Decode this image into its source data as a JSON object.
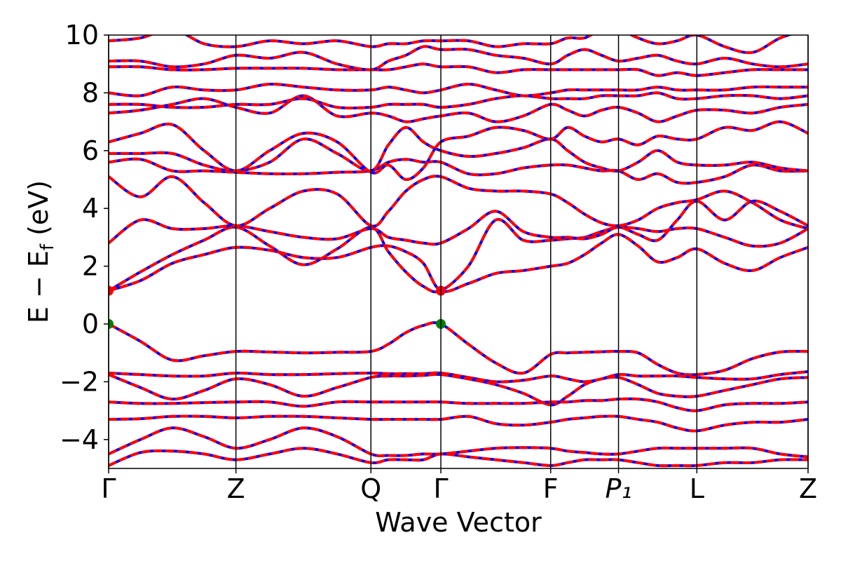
{
  "chart_data": {
    "type": "band-structure",
    "xlabel": "Wave Vector",
    "ylabel": [
      "E − E",
      "f",
      " (eV)"
    ],
    "xlim": [
      0,
      1
    ],
    "xticks": [
      {
        "value": 0,
        "label": "Γ"
      },
      {
        "value": 0.182,
        "label": "Z"
      },
      {
        "value": 0.375,
        "label": "Q"
      },
      {
        "value": 0.475,
        "label": "Γ"
      },
      {
        "value": 0.632,
        "label": "F"
      },
      {
        "value": 0.729,
        "label": "P₁"
      },
      {
        "value": 0.841,
        "label": "L"
      },
      {
        "value": 1.0,
        "label": "Z"
      }
    ],
    "ylim": [
      -5,
      10
    ],
    "yticks": [
      {
        "value": -4,
        "label": "−4"
      },
      {
        "value": -2,
        "label": "−2"
      },
      0,
      2,
      4,
      6,
      8,
      10
    ],
    "line_color": "#0000ff",
    "dash_color": "#ff0000",
    "x": [
      0,
      0.0455,
      0.091,
      0.1365,
      0.182,
      0.2303,
      0.2785,
      0.3268,
      0.375,
      0.4,
      0.425,
      0.45,
      0.475,
      0.5143,
      0.5535,
      0.5928,
      0.632,
      0.6563,
      0.6805,
      0.7048,
      0.729,
      0.757,
      0.785,
      0.813,
      0.841,
      0.8808,
      0.9205,
      0.9603,
      1.0
    ],
    "series": [
      {
        "values": [
          0,
          -0.6,
          -1.25,
          -1.1,
          -0.95,
          -0.97,
          -1.0,
          -0.98,
          -0.95,
          -0.7,
          -0.3,
          -0.05,
          0,
          -0.7,
          -1.35,
          -1.7,
          -1.05,
          -1.0,
          -0.98,
          -0.96,
          -0.95,
          -1.0,
          -1.4,
          -1.7,
          -1.75,
          -1.6,
          -1.2,
          -0.97,
          -0.95
        ]
      },
      {
        "values": [
          -1.7,
          -1.75,
          -1.8,
          -1.8,
          -1.7,
          -1.75,
          -1.75,
          -1.72,
          -1.7,
          -1.72,
          -1.72,
          -1.72,
          -1.7,
          -1.85,
          -2.0,
          -1.95,
          -1.8,
          -1.9,
          -2.0,
          -1.9,
          -1.75,
          -1.8,
          -1.8,
          -1.8,
          -1.85,
          -1.9,
          -1.9,
          -1.75,
          -1.65
        ]
      },
      {
        "values": [
          -1.75,
          -2.2,
          -2.6,
          -2.3,
          -1.9,
          -2.1,
          -2.5,
          -2.2,
          -1.85,
          -1.8,
          -1.8,
          -1.78,
          -1.75,
          -1.9,
          -2.1,
          -2.4,
          -2.8,
          -2.5,
          -2.1,
          -1.9,
          -1.85,
          -2.1,
          -2.4,
          -2.5,
          -2.5,
          -2.3,
          -2.1,
          -1.9,
          -1.85
        ]
      },
      {
        "values": [
          -2.7,
          -2.75,
          -2.75,
          -2.72,
          -2.7,
          -2.7,
          -2.85,
          -2.7,
          -2.7,
          -2.7,
          -2.7,
          -2.7,
          -2.7,
          -2.75,
          -2.75,
          -2.75,
          -2.7,
          -2.7,
          -2.65,
          -2.65,
          -2.6,
          -2.6,
          -2.7,
          -2.9,
          -3.0,
          -2.8,
          -2.75,
          -2.75,
          -2.7
        ]
      },
      {
        "values": [
          -3.3,
          -3.28,
          -3.2,
          -3.2,
          -3.25,
          -3.2,
          -3.2,
          -3.25,
          -3.3,
          -3.3,
          -3.3,
          -3.3,
          -3.3,
          -3.2,
          -3.45,
          -3.5,
          -3.4,
          -3.3,
          -3.25,
          -3.2,
          -3.2,
          -3.3,
          -3.4,
          -3.6,
          -3.7,
          -3.5,
          -3.4,
          -3.4,
          -3.3
        ]
      },
      {
        "values": [
          -4.5,
          -4.0,
          -3.6,
          -3.9,
          -4.3,
          -4.0,
          -3.6,
          -3.9,
          -4.5,
          -4.55,
          -4.55,
          -4.5,
          -4.5,
          -4.4,
          -4.3,
          -4.28,
          -4.3,
          -4.4,
          -4.45,
          -4.5,
          -4.5,
          -4.4,
          -4.3,
          -4.3,
          -4.3,
          -4.3,
          -4.3,
          -4.5,
          -4.6
        ]
      },
      {
        "values": [
          -4.9,
          -4.45,
          -4.4,
          -4.5,
          -4.7,
          -4.5,
          -4.3,
          -4.5,
          -4.8,
          -4.7,
          -4.7,
          -4.7,
          -4.5,
          -4.6,
          -4.7,
          -4.8,
          -4.9,
          -4.8,
          -4.7,
          -4.7,
          -4.7,
          -4.8,
          -4.9,
          -4.9,
          -4.9,
          -4.8,
          -4.8,
          -4.7,
          -4.7
        ]
      },
      {
        "values": [
          1.15,
          1.5,
          2.1,
          2.4,
          2.65,
          2.55,
          2.3,
          2.3,
          2.65,
          2.7,
          2.5,
          2.1,
          1.15,
          1.4,
          1.75,
          1.85,
          2.0,
          2.1,
          2.4,
          2.8,
          3.1,
          2.7,
          2.15,
          2.3,
          2.6,
          2.1,
          1.85,
          2.3,
          2.65
        ]
      },
      {
        "values": [
          1.15,
          1.8,
          2.4,
          2.9,
          3.35,
          2.7,
          2.05,
          2.6,
          3.35,
          2.5,
          1.8,
          1.3,
          1.15,
          2.0,
          3.6,
          2.9,
          2.9,
          2.95,
          3.0,
          3.2,
          3.35,
          3.3,
          3.2,
          3.3,
          3.3,
          3.0,
          2.7,
          2.8,
          3.3
        ]
      },
      {
        "values": [
          2.8,
          3.6,
          3.3,
          3.3,
          3.4,
          3.2,
          3.0,
          2.95,
          3.3,
          3.0,
          2.9,
          2.8,
          2.8,
          3.3,
          3.9,
          3.2,
          3.0,
          3.0,
          2.95,
          3.1,
          3.35,
          3.1,
          2.9,
          3.6,
          4.25,
          3.6,
          4.25,
          3.9,
          3.4
        ]
      },
      {
        "values": [
          5.1,
          4.4,
          5.1,
          4.2,
          3.4,
          4.0,
          4.6,
          4.5,
          3.4,
          3.9,
          4.6,
          5.0,
          5.1,
          4.7,
          4.6,
          4.6,
          4.5,
          4.2,
          3.8,
          3.5,
          3.4,
          3.6,
          4.0,
          4.2,
          4.3,
          4.6,
          4.2,
          3.6,
          3.3
        ]
      },
      {
        "values": [
          5.6,
          5.7,
          5.3,
          5.3,
          5.25,
          5.2,
          5.2,
          5.25,
          5.3,
          5.6,
          5.7,
          5.6,
          5.6,
          5.2,
          5.2,
          5.4,
          5.5,
          5.5,
          5.4,
          5.3,
          5.3,
          5.0,
          5.2,
          4.9,
          4.9,
          5.1,
          5.5,
          5.3,
          5.3
        ]
      },
      {
        "values": [
          5.9,
          5.9,
          5.9,
          5.5,
          5.3,
          5.6,
          6.4,
          5.9,
          5.3,
          6.2,
          6.8,
          6.3,
          6.0,
          5.8,
          5.9,
          6.1,
          6.4,
          6.0,
          5.6,
          5.4,
          5.3,
          5.6,
          6.0,
          5.6,
          5.5,
          5.5,
          5.6,
          5.4,
          5.3
        ]
      },
      {
        "values": [
          6.3,
          6.6,
          6.9,
          6.0,
          5.3,
          6.0,
          6.6,
          6.3,
          5.25,
          5.5,
          5.0,
          5.4,
          6.3,
          6.5,
          6.8,
          6.7,
          6.4,
          6.8,
          6.5,
          6.3,
          6.4,
          6.2,
          6.5,
          6.4,
          6.4,
          6.8,
          6.7,
          7.0,
          6.6
        ]
      },
      {
        "values": [
          7.3,
          7.4,
          7.6,
          7.8,
          7.5,
          7.3,
          7.9,
          7.2,
          7.3,
          7.2,
          7.0,
          7.1,
          7.2,
          7.3,
          7.0,
          7.2,
          7.6,
          7.4,
          7.2,
          7.4,
          7.5,
          7.3,
          7.0,
          7.2,
          7.4,
          7.4,
          7.3,
          7.5,
          7.6
        ]
      },
      {
        "values": [
          7.6,
          7.6,
          7.5,
          7.5,
          7.6,
          7.6,
          7.8,
          7.5,
          7.5,
          7.6,
          7.6,
          7.6,
          7.5,
          7.6,
          7.8,
          7.9,
          7.8,
          7.8,
          7.8,
          7.9,
          7.9,
          7.9,
          8.0,
          7.8,
          7.8,
          7.9,
          7.9,
          7.8,
          7.9
        ]
      },
      {
        "values": [
          8.0,
          7.9,
          8.2,
          8.1,
          8.1,
          8.3,
          8.2,
          8.1,
          8.1,
          8.2,
          8.1,
          8.0,
          8.1,
          8.3,
          8.1,
          7.9,
          8.0,
          8.1,
          8.1,
          8.1,
          8.1,
          8.1,
          8.2,
          8.1,
          8.1,
          8.1,
          8.2,
          8.2,
          8.2
        ]
      },
      {
        "values": [
          8.9,
          8.9,
          8.8,
          8.8,
          8.85,
          8.85,
          8.85,
          8.8,
          8.8,
          8.8,
          8.9,
          9.0,
          8.9,
          8.9,
          8.7,
          8.8,
          8.8,
          8.8,
          8.8,
          8.8,
          8.8,
          8.8,
          8.6,
          8.7,
          8.6,
          8.7,
          8.8,
          8.8,
          8.8
        ]
      },
      {
        "values": [
          9.1,
          9.1,
          8.9,
          9.0,
          9.3,
          9.2,
          9.4,
          9.0,
          8.8,
          9.1,
          9.3,
          9.6,
          9.5,
          9.5,
          9.3,
          9.2,
          9.0,
          9.3,
          9.5,
          9.3,
          9.1,
          9.2,
          9.3,
          9.1,
          9.0,
          9.2,
          9.0,
          8.9,
          9.0
        ]
      },
      {
        "values": [
          9.8,
          9.9,
          10.2,
          9.7,
          9.6,
          9.8,
          9.7,
          9.8,
          9.6,
          9.7,
          9.7,
          9.8,
          9.8,
          9.8,
          9.6,
          9.7,
          9.7,
          9.9,
          9.9,
          10.2,
          10.2,
          9.9,
          9.7,
          9.8,
          10.0,
          9.6,
          9.4,
          9.9,
          10.2
        ]
      }
    ],
    "markers": [
      {
        "x": 0,
        "y": 1.15,
        "color": "#ff0000"
      },
      {
        "x": 0.475,
        "y": 1.15,
        "color": "#ff0000"
      },
      {
        "x": 0,
        "y": 0,
        "color": "#008000"
      },
      {
        "x": 0.475,
        "y": 0,
        "color": "#008000"
      }
    ]
  }
}
